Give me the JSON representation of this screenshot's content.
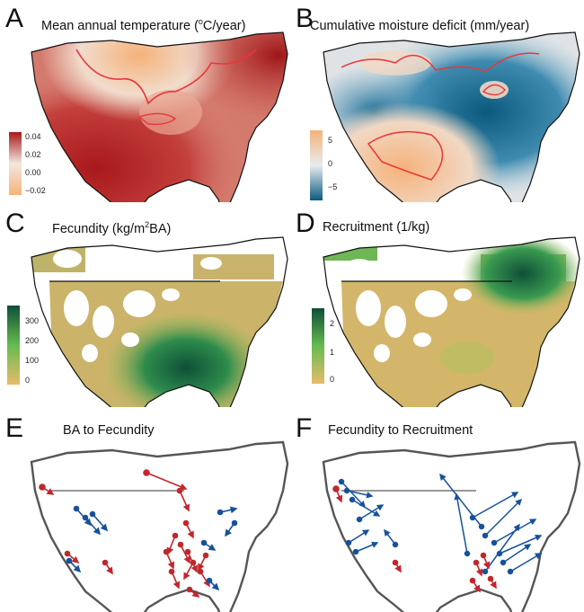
{
  "panels": {
    "a": {
      "letter": "A",
      "title": "Mean annual temperature (",
      "title_sup": "o",
      "title_end": "C/year)",
      "colorbar_ticks": [
        "0.04",
        "0.02",
        "0.00",
        "−0.02"
      ],
      "colors": {
        "high": "#a8181b",
        "mid": "#f3e7df",
        "low": "#f5b27a"
      }
    },
    "b": {
      "letter": "B",
      "title": "Cumulative moisture deficit (mm/year)",
      "colorbar_ticks": [
        "5",
        "0",
        "−5"
      ],
      "colors": {
        "high": "#f5b27a",
        "mid": "#e8ecef",
        "low": "#0b5a7e"
      }
    },
    "c": {
      "letter": "C",
      "title": "Fecundity (kg/m",
      "title_sup": "2",
      "title_end": "BA)",
      "colorbar_ticks": [
        "300",
        "200",
        "100",
        "0"
      ],
      "colors": {
        "high": "#0e4f37",
        "mid": "#66bb50",
        "low": "#e8bb6a"
      }
    },
    "d": {
      "letter": "D",
      "title": "Recruitment (1/kg)",
      "colorbar_ticks": [
        "2",
        "1",
        "0"
      ],
      "colors": {
        "high": "#0e4f37",
        "mid": "#66bb50",
        "low": "#e8bb6a"
      }
    },
    "e": {
      "letter": "E",
      "title": "BA to Fecundity",
      "colors": {
        "red": "#c1272d",
        "blue": "#17519a"
      }
    },
    "f": {
      "letter": "F",
      "title": "Fecundity to Recruitment",
      "colors": {
        "red": "#c1272d",
        "blue": "#17519a"
      }
    }
  }
}
